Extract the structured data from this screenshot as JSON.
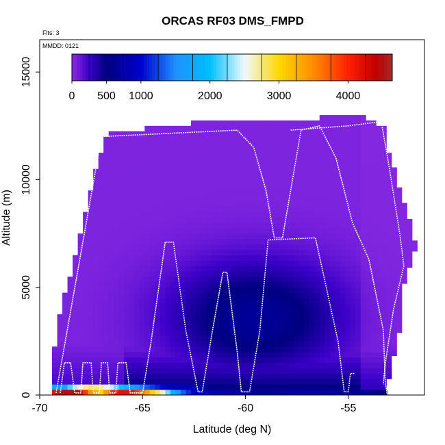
{
  "chart_data": {
    "type": "heatmap",
    "title": "ORCAS RF03 DMS_FMPD",
    "xlabel": "Latitude (deg N)",
    "ylabel": "Altitude (m)",
    "xlim": [
      -70,
      -51.3
    ],
    "ylim": [
      0,
      16500
    ],
    "x_ticks": [
      -70,
      -65,
      -60,
      -55
    ],
    "x_tick_labels": [
      "-70",
      "-65",
      "-60",
      "-55"
    ],
    "y_ticks": [
      0,
      5000,
      10000,
      15000
    ],
    "y_tick_labels": [
      "0",
      "5000",
      "10000",
      "15000"
    ],
    "grid": false,
    "annotations": {
      "flights": "Flts: 3",
      "date": "MMDD: 0121"
    },
    "colorbar": {
      "min": 0,
      "max": 4640,
      "tick_values": [
        0,
        500,
        1000,
        2000,
        3000,
        4000
      ],
      "tick_labels": [
        "0",
        "500",
        "1000",
        "2000",
        "3000",
        "4000"
      ],
      "stops": [
        {
          "v": 0,
          "c": "#8a2be2"
        },
        {
          "v": 250,
          "c": "#3c00c8"
        },
        {
          "v": 500,
          "c": "#000080"
        },
        {
          "v": 1000,
          "c": "#0000cd"
        },
        {
          "v": 1500,
          "c": "#1e90ff"
        },
        {
          "v": 2000,
          "c": "#00bfff"
        },
        {
          "v": 2500,
          "c": "#f0f8ff"
        },
        {
          "v": 3000,
          "c": "#ffd700"
        },
        {
          "v": 3500,
          "c": "#ff8c00"
        },
        {
          "v": 4000,
          "c": "#ff2000"
        },
        {
          "v": 4400,
          "c": "#c00000"
        },
        {
          "v": 4640,
          "c": "#a52a2a"
        }
      ]
    },
    "envelope": [
      {
        "lat": -69.4,
        "top": 1500
      },
      {
        "lat": -69.0,
        "top": 3800
      },
      {
        "lat": -68.5,
        "top": 5500
      },
      {
        "lat": -68.0,
        "top": 7500
      },
      {
        "lat": -67.5,
        "top": 9500
      },
      {
        "lat": -67.0,
        "top": 11200
      },
      {
        "lat": -66.7,
        "top": 12200
      },
      {
        "lat": -66.0,
        "top": 12200
      },
      {
        "lat": -64.0,
        "top": 12300
      },
      {
        "lat": -61.2,
        "top": 12700
      },
      {
        "lat": -60.0,
        "top": 12700
      },
      {
        "lat": -58.5,
        "top": 12700
      },
      {
        "lat": -57.0,
        "top": 12700
      },
      {
        "lat": -56.0,
        "top": 12800
      },
      {
        "lat": -55.5,
        "top": 13000
      },
      {
        "lat": -54.5,
        "top": 13000
      },
      {
        "lat": -53.5,
        "top": 12400
      },
      {
        "lat": -53.0,
        "top": 11000
      },
      {
        "lat": -52.5,
        "top": 9500
      },
      {
        "lat": -52.0,
        "top": 8000
      },
      {
        "lat": -51.6,
        "top": 6500
      },
      {
        "lat": -51.9,
        "top": 6000
      },
      {
        "lat": -52.4,
        "top": 4500
      },
      {
        "lat": -52.9,
        "top": 3000
      },
      {
        "lat": -53.2,
        "top": 1500
      },
      {
        "lat": -53.3,
        "top": 0
      }
    ],
    "cells": {
      "description_free": true,
      "lat_step": 0.25,
      "alt_step": 250,
      "surface_layer": [
        {
          "lat": -69.2,
          "v": 4200
        },
        {
          "lat": -69.0,
          "v": 4300
        },
        {
          "lat": -68.5,
          "v": 4500
        },
        {
          "lat": -68.0,
          "v": 4300
        },
        {
          "lat": -67.5,
          "v": 3400
        },
        {
          "lat": -67.0,
          "v": 3000
        },
        {
          "lat": -66.5,
          "v": 3900
        },
        {
          "lat": -66.0,
          "v": 4200
        },
        {
          "lat": -65.5,
          "v": 4100
        },
        {
          "lat": -65.0,
          "v": 3600
        },
        {
          "lat": -64.5,
          "v": 3000
        },
        {
          "lat": -64.0,
          "v": 2600
        },
        {
          "lat": -63.5,
          "v": 1800
        },
        {
          "lat": -63.0,
          "v": 1300
        },
        {
          "lat": -62.5,
          "v": 1000
        },
        {
          "lat": -62.0,
          "v": 900
        },
        {
          "lat": -61.0,
          "v": 800
        },
        {
          "lat": -60.0,
          "v": 700
        },
        {
          "lat": -59.0,
          "v": 650
        },
        {
          "lat": -58.0,
          "v": 700
        },
        {
          "lat": -57.0,
          "v": 750
        },
        {
          "lat": -56.0,
          "v": 700
        },
        {
          "lat": -55.0,
          "v": 650
        },
        {
          "lat": -54.0,
          "v": 600
        },
        {
          "lat": -53.5,
          "v": 500
        }
      ],
      "upper_layer": [
        {
          "lat": -69.2,
          "v": 1800
        },
        {
          "lat": -69.0,
          "v": 1500
        },
        {
          "lat": -68.5,
          "v": 2200
        },
        {
          "lat": -68.0,
          "v": 2600
        },
        {
          "lat": -67.5,
          "v": 2800
        },
        {
          "lat": -67.0,
          "v": 2700
        },
        {
          "lat": -66.5,
          "v": 2400
        },
        {
          "lat": -66.0,
          "v": 2000
        },
        {
          "lat": -65.5,
          "v": 1700
        },
        {
          "lat": -65.0,
          "v": 1400
        },
        {
          "lat": -64.5,
          "v": 1200
        },
        {
          "lat": -64.0,
          "v": 1000
        },
        {
          "lat": -63.5,
          "v": 900
        },
        {
          "lat": -63.0,
          "v": 850
        },
        {
          "lat": -62.0,
          "v": 800
        }
      ]
    },
    "flight_tracks": [
      {
        "name": "track-1",
        "points": [
          [
            -69.0,
            100
          ],
          [
            -68.8,
            1500
          ],
          [
            -68.5,
            1500
          ],
          [
            -68.3,
            100
          ],
          [
            -68.0,
            100
          ],
          [
            -67.9,
            1500
          ],
          [
            -67.5,
            1500
          ],
          [
            -67.4,
            100
          ],
          [
            -67.1,
            100
          ],
          [
            -67.0,
            1500
          ],
          [
            -66.7,
            1500
          ],
          [
            -66.6,
            100
          ],
          [
            -66.3,
            100
          ],
          [
            -66.2,
            1500
          ],
          [
            -65.8,
            1500
          ],
          [
            -65.6,
            100
          ],
          [
            -65.0,
            100
          ],
          [
            -64.6,
            2400
          ],
          [
            -63.9,
            7100
          ],
          [
            -63.5,
            7100
          ],
          [
            -62.9,
            3000
          ],
          [
            -62.3,
            150
          ],
          [
            -62.1,
            150
          ],
          [
            -61.6,
            3000
          ],
          [
            -61.1,
            5700
          ],
          [
            -60.9,
            5700
          ],
          [
            -60.4,
            2000
          ],
          [
            -60.2,
            150
          ],
          [
            -59.8,
            150
          ],
          [
            -59.3,
            3000
          ],
          [
            -58.9,
            7200
          ],
          [
            -56.6,
            7300
          ],
          [
            -55.5,
            2500
          ],
          [
            -55.2,
            150
          ],
          [
            -55.0,
            150
          ],
          [
            -54.9,
            1000
          ],
          [
            -54.7,
            1000
          ]
        ]
      },
      {
        "name": "track-2",
        "points": [
          [
            -69.2,
            100
          ],
          [
            -68.2,
            5500
          ],
          [
            -67.0,
            12000
          ],
          [
            -60.4,
            12300
          ],
          [
            -59.6,
            11500
          ],
          [
            -59.0,
            9500
          ],
          [
            -58.6,
            7300
          ],
          [
            -58.2,
            7300
          ],
          [
            -57.3,
            12300
          ],
          [
            -56.4,
            12500
          ],
          [
            -55.6,
            11000
          ],
          [
            -54.8,
            8000
          ],
          [
            -54.0,
            6300
          ],
          [
            -53.3,
            3000
          ],
          [
            -53.2,
            500
          ],
          [
            -53.1,
            0
          ]
        ]
      },
      {
        "name": "track-3",
        "points": [
          [
            -57.8,
            12300
          ],
          [
            -55.0,
            12500
          ],
          [
            -53.4,
            12700
          ],
          [
            -53.0,
            10500
          ],
          [
            -52.5,
            7500
          ],
          [
            -52.3,
            6000
          ],
          [
            -52.8,
            4000
          ],
          [
            -53.2,
            1500
          ],
          [
            -53.3,
            500
          ]
        ]
      }
    ],
    "end_marker": {
      "lat": -53.1,
      "alt": 0,
      "symbol": "↓"
    }
  }
}
